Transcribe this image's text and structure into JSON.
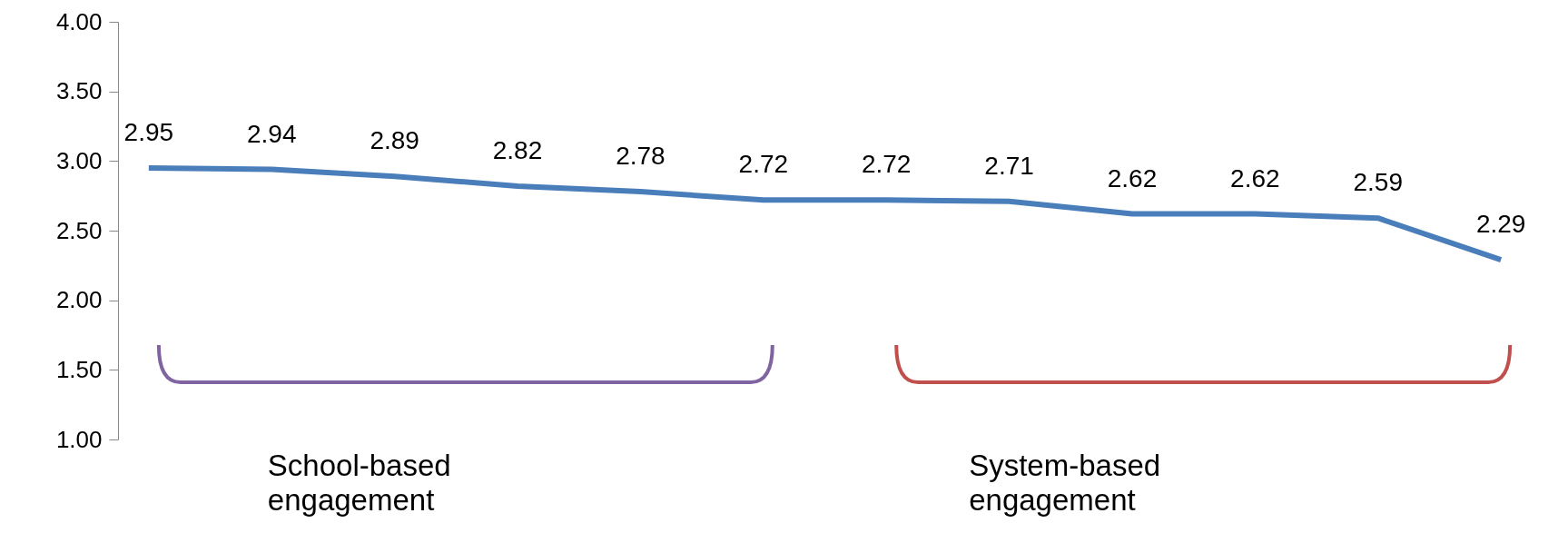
{
  "chart_data": {
    "type": "line",
    "categories": [
      null,
      null,
      null,
      null,
      null,
      null,
      null,
      null,
      null,
      null,
      null,
      null
    ],
    "series": [
      {
        "color": "#4a7ebb",
        "values": [
          2.95,
          2.94,
          2.89,
          2.82,
          2.78,
          2.72,
          2.72,
          2.71,
          2.62,
          2.62,
          2.59,
          2.29
        ]
      }
    ],
    "ylim": [
      1,
      4
    ],
    "yticks": [
      {
        "value": 1,
        "label": "1.00"
      },
      {
        "value": 1.5,
        "label": "1.50"
      },
      {
        "value": 2,
        "label": "2.00"
      },
      {
        "value": 2.5,
        "label": "2.50"
      },
      {
        "value": 3,
        "label": "3.00"
      },
      {
        "value": 3.5,
        "label": "3.50"
      },
      {
        "value": 4,
        "label": "4.00"
      }
    ],
    "data_labels": true,
    "grid": false,
    "marker": "none",
    "line_style": "solid",
    "tick_labels": "y",
    "annotations": [
      "School-based engagement",
      "System-based engagement"
    ]
  }
}
